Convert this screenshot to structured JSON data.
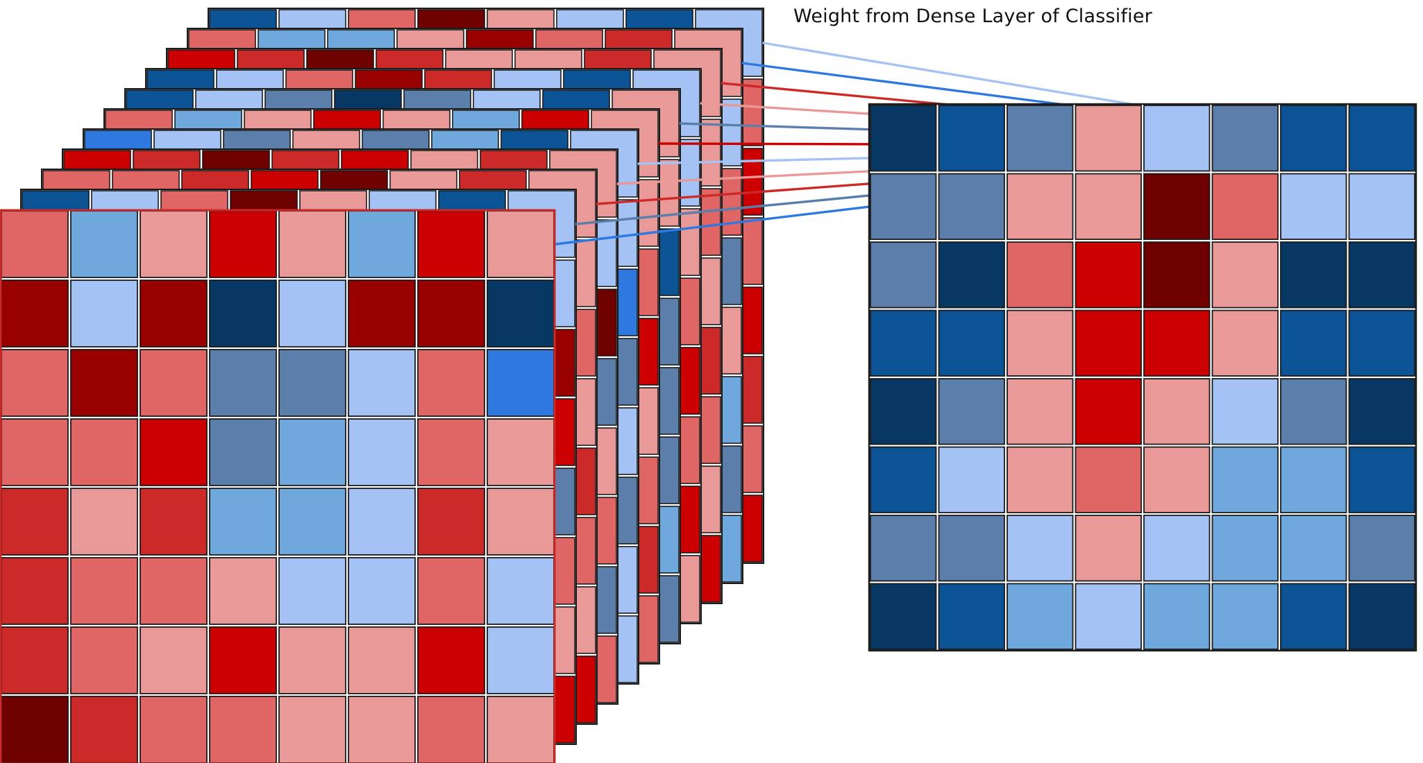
{
  "caption": "Weight from Dense Layer of Classifier",
  "palette": {
    "R4": "#6e0000",
    "R3": "#990000",
    "R2": "#cc0000",
    "R1": "#cc2929",
    "R0": "#e06666",
    "RL": "#ea9999",
    "BL": "#a4c2f4",
    "B0": "#6fa8dc",
    "BA": "#2e78e0",
    "B1": "#5b7faa",
    "B2": "#0b5394",
    "B3": "#073763"
  },
  "front_map": [
    [
      "R0",
      "B0",
      "RL",
      "R2",
      "RL",
      "B0",
      "R2",
      "RL"
    ],
    [
      "R3",
      "BL",
      "R3",
      "B3",
      "BL",
      "R3",
      "R3",
      "B3"
    ],
    [
      "R0",
      "R3",
      "R0",
      "B1",
      "B1",
      "BL",
      "R0",
      "BA"
    ],
    [
      "R0",
      "R0",
      "R2",
      "B1",
      "B0",
      "BL",
      "R0",
      "RL"
    ],
    [
      "R1",
      "RL",
      "R1",
      "B0",
      "B0",
      "BL",
      "R1",
      "RL"
    ],
    [
      "R1",
      "R0",
      "R0",
      "RL",
      "BL",
      "BL",
      "R0",
      "BL"
    ],
    [
      "R1",
      "R0",
      "RL",
      "R2",
      "RL",
      "RL",
      "R2",
      "BL"
    ],
    [
      "R4",
      "R1",
      "R0",
      "R0",
      "RL",
      "RL",
      "R0",
      "RL"
    ]
  ],
  "back_top_rows": [
    [
      "B2",
      "BL",
      "R0",
      "R4",
      "RL",
      "BL",
      "B2",
      "BL"
    ],
    [
      "R0",
      "R0",
      "R1",
      "R2",
      "R4",
      "RL",
      "R1",
      "RL"
    ],
    [
      "R2",
      "R1",
      "R4",
      "R1",
      "R2",
      "RL",
      "R1",
      "RL"
    ],
    [
      "BA",
      "BL",
      "B1",
      "RL",
      "B1",
      "B0",
      "B2",
      "BL"
    ],
    [
      "R0",
      "B0",
      "RL",
      "R2",
      "RL",
      "B0",
      "R2",
      "RL"
    ],
    [
      "B2",
      "BL",
      "B1",
      "B3",
      "B1",
      "BL",
      "B2",
      "RL"
    ],
    [
      "B2",
      "BL",
      "R0",
      "R3",
      "R1",
      "BL",
      "B2",
      "BL"
    ],
    [
      "R2",
      "R1",
      "R4",
      "R1",
      "RL",
      "RL",
      "R1",
      "RL"
    ],
    [
      "R0",
      "B0",
      "B0",
      "RL",
      "R3",
      "R0",
      "R1",
      "RL"
    ],
    [
      "B2",
      "BL",
      "R0",
      "R4",
      "RL",
      "BL",
      "B2",
      "BL"
    ]
  ],
  "back_right_cols": [
    [
      "BL",
      "R3",
      "R2",
      "B1",
      "R0",
      "RL",
      "R2",
      "R0",
      "RL"
    ],
    [
      "RL",
      "R0",
      "RL",
      "R1",
      "R0",
      "RL",
      "R2",
      "R0",
      "RL"
    ],
    [
      "BL",
      "R4",
      "B1",
      "RL",
      "R0",
      "B1",
      "R0",
      "R1",
      "RL"
    ],
    [
      "BL",
      "BA",
      "B1",
      "BL",
      "B1",
      "BL",
      "BL",
      "RL",
      "RL"
    ],
    [
      "RL",
      "R0",
      "R2",
      "RL",
      "R0",
      "R1",
      "R0",
      "RL",
      "RL"
    ],
    [
      "RL",
      "B2",
      "B1",
      "B1",
      "B1",
      "B0",
      "B1",
      "BL",
      "BL"
    ],
    [
      "BL",
      "RL",
      "R0",
      "R2",
      "R0",
      "R2",
      "RL",
      "R0",
      "BL"
    ],
    [
      "RL",
      "R0",
      "RL",
      "R1",
      "R0",
      "RL",
      "R2",
      "R0",
      "RL"
    ],
    [
      "BL",
      "R0",
      "B1",
      "RL",
      "B0",
      "B1",
      "B0",
      "B1",
      "B0"
    ],
    [
      "R0",
      "R2",
      "R0",
      "R2",
      "R1",
      "R0",
      "R2",
      "RL",
      "R0"
    ]
  ],
  "output_map": [
    [
      "B3",
      "B2",
      "B1",
      "RL",
      "BL",
      "B1",
      "B2",
      "B2"
    ],
    [
      "B1",
      "B1",
      "RL",
      "RL",
      "R4",
      "R0",
      "BL",
      "BL"
    ],
    [
      "B1",
      "B3",
      "R0",
      "R2",
      "R4",
      "RL",
      "B3",
      "B3"
    ],
    [
      "B2",
      "B2",
      "RL",
      "R2",
      "R2",
      "RL",
      "B2",
      "B2"
    ],
    [
      "B3",
      "B1",
      "RL",
      "R2",
      "RL",
      "BL",
      "B1",
      "B3"
    ],
    [
      "B2",
      "BL",
      "RL",
      "R0",
      "RL",
      "B0",
      "B0",
      "B2"
    ],
    [
      "B1",
      "B1",
      "BL",
      "RL",
      "BL",
      "B0",
      "B0",
      "B1"
    ],
    [
      "B3",
      "B2",
      "B0",
      "BL",
      "B0",
      "B0",
      "B2",
      "B3"
    ]
  ],
  "weight_lines": [
    "BL",
    "BA",
    "R1",
    "RL",
    "B1",
    "R2",
    "BL",
    "RL",
    "R1",
    "B1",
    "BA"
  ]
}
